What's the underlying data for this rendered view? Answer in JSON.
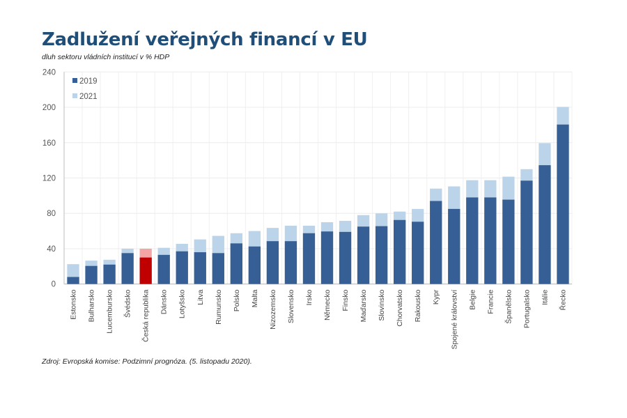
{
  "chart_data": {
    "type": "bar",
    "title": "Zadlužení veřejných financí v EU",
    "subtitle": "dluh sektoru vládních institucí v % HDP",
    "source": "Zdroj: Evropská komise: Podzimní prognóza. (5. listopadu 2020).",
    "xlabel": "",
    "ylabel": "",
    "ylim": [
      0,
      240
    ],
    "yticks": [
      0,
      40,
      80,
      120,
      160,
      200,
      240
    ],
    "grid": true,
    "legend_position": "top-left",
    "categories": [
      "Estonsko",
      "Bulharsko",
      "Lucembursko",
      "Švédsko",
      "Česká republika",
      "Dánsko",
      "Lotyšsko",
      "Litva",
      "Rumunsko",
      "Polsko",
      "Malta",
      "Nizozemsko",
      "Slovensko",
      "Irsko",
      "Německo",
      "Finsko",
      "Maďarsko",
      "Slovinsko",
      "Chorvatsko",
      "Rakousko",
      "Kypr",
      "Spojené království",
      "Belgie",
      "Francie",
      "Španělsko",
      "Portugalsko",
      "Itálie",
      "Řecko"
    ],
    "series": [
      {
        "name": "2019",
        "color": "#365f96",
        "values": [
          8,
          20.5,
          22,
          35,
          30,
          33,
          37,
          36,
          35,
          46,
          42.5,
          48.5,
          48.5,
          57.5,
          59.5,
          59,
          65,
          65.5,
          72.5,
          70.5,
          94,
          85,
          98,
          98,
          95.5,
          117,
          134.5,
          180.5
        ]
      },
      {
        "name": "2021",
        "color": "#bcd4ea",
        "values": [
          22.5,
          26.5,
          27.5,
          40,
          40,
          41,
          45.5,
          50.5,
          54.5,
          57.5,
          60,
          63.5,
          66,
          66,
          70,
          71.5,
          78,
          80,
          82,
          85,
          108,
          110.5,
          117.5,
          117.5,
          121.5,
          130,
          159.5,
          200.5
        ]
      }
    ],
    "highlight": {
      "category": "Česká republika",
      "color_2019": "#c00000",
      "color_2021": "#f4a6a6"
    }
  }
}
